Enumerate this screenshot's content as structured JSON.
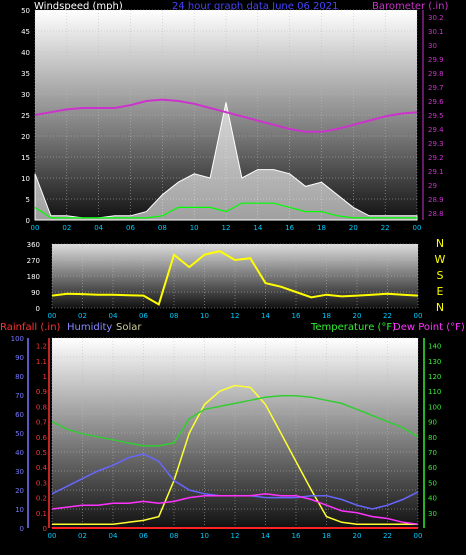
{
  "header": {
    "left_title": "Windspeed (mph)",
    "center_title": "24 hour graph data   June 06 2021",
    "right_title": "Barometer (.in)"
  },
  "colors": {
    "wind": "#ffffff",
    "gust_fill": "#ffffff",
    "avg_wind": "#00ff00",
    "barometer": "#cc33cc",
    "wind_dir": "#ffff00",
    "rainfall": "#ff2222",
    "humidity": "#6666ff",
    "solar": "#ffff33",
    "temperature": "#33cc33",
    "dewpoint": "#ff33ff",
    "time_axis": "#00ccff",
    "barometer_axis": "#cc33cc",
    "temperature_axis": "#33ee33",
    "rain_axis": "#ff3333",
    "humidity_axis": "#7777ff"
  },
  "time_ticks": [
    "00",
    "02",
    "04",
    "06",
    "08",
    "10",
    "12",
    "14",
    "16",
    "18",
    "20",
    "22",
    "00"
  ],
  "chart_data": [
    {
      "type": "line",
      "name": "wind-barometer",
      "x_hours": [
        0,
        1,
        2,
        3,
        4,
        5,
        6,
        7,
        8,
        9,
        10,
        11,
        12,
        13,
        14,
        15,
        16,
        17,
        18,
        19,
        20,
        21,
        22,
        23,
        24
      ],
      "y_left_ticks": [
        0,
        5,
        10,
        15,
        20,
        25,
        30,
        35,
        40,
        45,
        50
      ],
      "ylim_left": [
        0,
        50
      ],
      "ylabel_left": "Windspeed (mph)",
      "y_right_ticks": [
        "28.8",
        "28.9",
        "29",
        "29.1",
        "29.2",
        "29.3",
        "29.4",
        "29.5",
        "29.6",
        "29.7",
        "29.8",
        "29.9",
        "30",
        "30.1",
        "30.2"
      ],
      "ylim_right": [
        28.75,
        30.25
      ],
      "ylabel_right": "Barometer (.in)",
      "series": [
        {
          "name": "Barometer",
          "axis": "right",
          "values": [
            29.5,
            29.52,
            29.54,
            29.55,
            29.55,
            29.55,
            29.57,
            29.6,
            29.61,
            29.6,
            29.58,
            29.55,
            29.52,
            29.49,
            29.46,
            29.43,
            29.4,
            29.38,
            29.38,
            29.4,
            29.43,
            29.46,
            29.49,
            29.51,
            29.52
          ]
        },
        {
          "name": "Average wind",
          "axis": "left",
          "values": [
            3,
            0.5,
            0.5,
            0.5,
            0.5,
            0.5,
            0.5,
            0.5,
            1,
            3,
            3,
            3,
            2,
            4,
            4,
            4,
            3,
            2,
            2,
            1,
            0.5,
            0.5,
            0.5,
            0.5,
            0.5
          ]
        },
        {
          "name": "Gust peak",
          "axis": "left",
          "values": [
            11,
            1,
            1,
            0.5,
            0.5,
            1,
            1,
            2,
            6,
            9,
            11,
            10,
            28,
            10,
            12,
            12,
            11,
            8,
            9,
            6,
            3,
            1,
            1,
            1,
            1
          ]
        }
      ]
    },
    {
      "type": "line",
      "name": "wind-direction",
      "y_right_labels": [
        "N",
        "W",
        "S",
        "E",
        "N"
      ],
      "y_left_ticks": [
        0,
        90,
        180,
        270,
        360
      ],
      "ylim": [
        0,
        360
      ],
      "x_hours": [
        0,
        1,
        2,
        3,
        4,
        5,
        6,
        7,
        8,
        9,
        10,
        11,
        12,
        13,
        14,
        15,
        16,
        17,
        18,
        19,
        20,
        21,
        22,
        23,
        24
      ],
      "series": [
        {
          "name": "Wind direction",
          "values": [
            70,
            80,
            78,
            75,
            75,
            72,
            70,
            20,
            300,
            230,
            300,
            320,
            270,
            280,
            140,
            120,
            90,
            60,
            75,
            65,
            70,
            75,
            80,
            75,
            70
          ]
        }
      ]
    },
    {
      "type": "line",
      "name": "temp-humidity",
      "x_hours": [
        0,
        1,
        2,
        3,
        4,
        5,
        6,
        7,
        8,
        9,
        10,
        11,
        12,
        13,
        14,
        15,
        16,
        17,
        18,
        19,
        20,
        21,
        22,
        23,
        24
      ],
      "y_left_ticks": [
        0,
        10,
        20,
        30,
        40,
        50,
        60,
        70,
        80,
        90,
        100
      ],
      "ylim_left": [
        0,
        100
      ],
      "rain_ticks": [
        "0",
        "0.1",
        "0.2",
        "0.3",
        "0.4",
        "0.5",
        "0.6",
        "0.7",
        "0.8",
        "0.9",
        "1",
        "1.1",
        "1.2"
      ],
      "y_right_ticks": [
        30,
        40,
        50,
        60,
        70,
        80,
        90,
        100,
        110,
        120,
        130,
        140
      ],
      "ylim_right": [
        20,
        145
      ],
      "legend": [
        "Rainfall (.in)",
        "Humidity",
        "Solar",
        "Temperature (°F)",
        "Dew Point (°F)"
      ],
      "series": [
        {
          "name": "Temperature",
          "axis": "right",
          "values": [
            90,
            85,
            82,
            80,
            78,
            76,
            74,
            74,
            76,
            92,
            98,
            100,
            102,
            104,
            106,
            107,
            107,
            106,
            104,
            102,
            98,
            94,
            90,
            86,
            80
          ]
        },
        {
          "name": "Humidity",
          "axis": "left",
          "values": [
            18,
            22,
            26,
            30,
            33,
            37,
            39,
            35,
            25,
            20,
            18,
            17,
            17,
            17,
            16,
            16,
            16,
            17,
            17,
            15,
            12,
            10,
            12,
            15,
            19
          ]
        },
        {
          "name": "Dew Point",
          "axis": "left",
          "values": [
            10,
            11,
            12,
            12,
            13,
            13,
            14,
            13,
            14,
            16,
            17,
            17,
            17,
            17,
            18,
            17,
            17,
            15,
            12,
            9,
            8,
            6,
            5,
            3,
            2
          ]
        },
        {
          "name": "Solar",
          "axis": "left",
          "values": [
            2,
            2,
            2,
            2,
            2,
            3,
            4,
            6,
            25,
            50,
            65,
            72,
            75,
            74,
            65,
            50,
            35,
            20,
            6,
            3,
            2,
            2,
            2,
            2,
            2
          ]
        },
        {
          "name": "Rainfall",
          "axis": "left",
          "values": [
            0,
            0,
            0,
            0,
            0,
            0,
            0,
            0,
            0,
            0,
            0,
            0,
            0,
            0,
            0,
            0,
            0,
            0,
            0,
            0,
            0,
            0,
            0,
            0,
            0
          ]
        }
      ]
    }
  ]
}
